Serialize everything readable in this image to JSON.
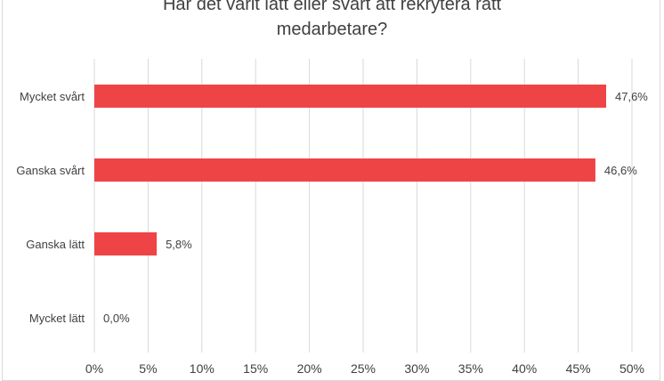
{
  "chart_data": {
    "type": "bar",
    "orientation": "horizontal",
    "title_lines": [
      "Har det varit lätt eller svårt att rekrytera rätt",
      "medarbetare?"
    ],
    "categories": [
      "Mycket svårt",
      "Ganska svårt",
      "Ganska lätt",
      "Mycket lätt"
    ],
    "values": [
      47.6,
      46.6,
      5.8,
      0.0
    ],
    "data_labels": [
      "47,6%",
      "46,6%",
      "5,8%",
      "0,0%"
    ],
    "xticks": [
      0,
      5,
      10,
      15,
      20,
      25,
      30,
      35,
      40,
      45,
      50
    ],
    "xtick_labels": [
      "0%",
      "5%",
      "10%",
      "15%",
      "20%",
      "25%",
      "30%",
      "35%",
      "40%",
      "45%",
      "50%"
    ],
    "xlim": [
      0,
      50
    ],
    "grid": true,
    "bar_color": "#EF4446",
    "xlabel": "",
    "ylabel": ""
  }
}
